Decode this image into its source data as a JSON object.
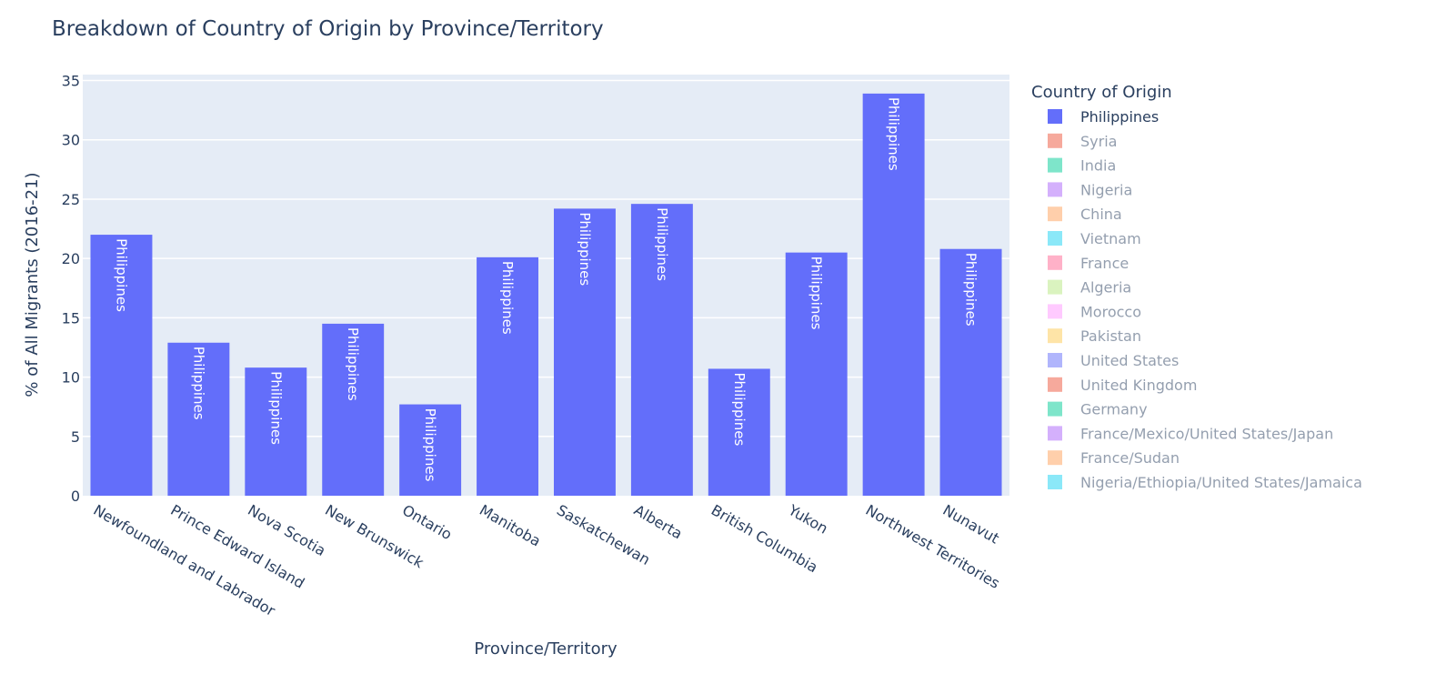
{
  "chart_data": {
    "type": "bar",
    "title": "Breakdown of Country of Origin by Province/Territory",
    "xlabel": "Province/Territory",
    "ylabel": "% of All Migrants (2016-21)",
    "ylim": [
      0,
      35.5
    ],
    "yticks": [
      0,
      5,
      10,
      15,
      20,
      25,
      30,
      35
    ],
    "grid": true,
    "legend_position": "right",
    "legend_title": "Country of Origin",
    "categories": [
      "Newfoundland and Labrador",
      "Prince Edward Island",
      "Nova Scotia",
      "New Brunswick",
      "Ontario",
      "Manitoba",
      "Saskatchewan",
      "Alberta",
      "British Columbia",
      "Yukon",
      "Northwest Territories",
      "Nunavut"
    ],
    "series": [
      {
        "name": "Philippines",
        "color": "#636efa",
        "visible": true,
        "values": [
          22.0,
          12.9,
          10.8,
          14.5,
          7.7,
          20.1,
          24.2,
          24.6,
          10.7,
          20.5,
          33.9,
          20.8
        ],
        "text": "Philippines"
      }
    ],
    "legend": [
      {
        "name": "Philippines",
        "color": "#636efa",
        "visible": true
      },
      {
        "name": "Syria",
        "color": "#EF553B",
        "visible": false
      },
      {
        "name": "India",
        "color": "#00cc96",
        "visible": false
      },
      {
        "name": "Nigeria",
        "color": "#ab63fa",
        "visible": false
      },
      {
        "name": "China",
        "color": "#FFA15A",
        "visible": false
      },
      {
        "name": "Vietnam",
        "color": "#19d3f3",
        "visible": false
      },
      {
        "name": "France",
        "color": "#FF6692",
        "visible": false
      },
      {
        "name": "Algeria",
        "color": "#B6E880",
        "visible": false
      },
      {
        "name": "Morocco",
        "color": "#FF97FF",
        "visible": false
      },
      {
        "name": "Pakistan",
        "color": "#FECB52",
        "visible": false
      },
      {
        "name": "United States",
        "color": "#636efa",
        "visible": false
      },
      {
        "name": "United Kingdom",
        "color": "#EF553B",
        "visible": false
      },
      {
        "name": "Germany",
        "color": "#00cc96",
        "visible": false
      },
      {
        "name": "France/Mexico/United States/Japan",
        "color": "#ab63fa",
        "visible": false
      },
      {
        "name": "France/Sudan",
        "color": "#FFA15A",
        "visible": false
      },
      {
        "name": "Nigeria/Ethiopia/United States/Jamaica",
        "color": "#19d3f3",
        "visible": false
      }
    ],
    "colors": {
      "plot_background": "#e5ecf6",
      "gridline": "#ffffff",
      "text": "#2a3f5f"
    }
  }
}
